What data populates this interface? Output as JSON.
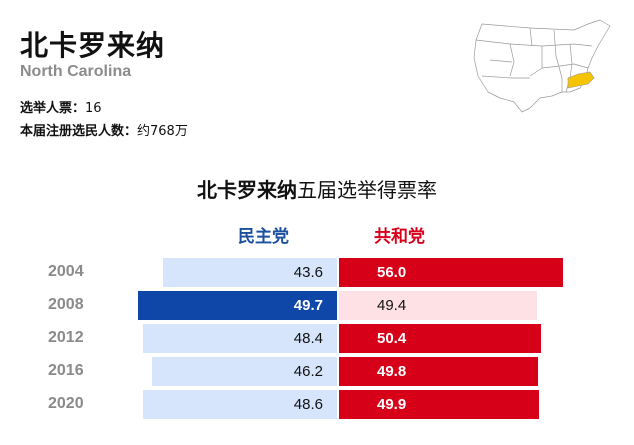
{
  "header": {
    "title": "北卡罗来纳",
    "subtitle": "North Carolina",
    "electoral_votes_label": "选举人票：",
    "electoral_votes_value": "16",
    "registered_label": "本届注册选民人数：",
    "registered_value": "约768万"
  },
  "map": {
    "highlight_color": "#f5c400",
    "icon": "us-map-icon"
  },
  "chart": {
    "title_bold": "北卡罗来纳",
    "title_rest": "五届选举得票率",
    "dem_label": "民主党",
    "rep_label": "共和党"
  },
  "colors": {
    "dem_win": "#0e47a7",
    "dem_lose": "#d6e5fb",
    "rep_win": "#d60019",
    "rep_lose": "#fde1e4"
  },
  "chart_data": {
    "type": "bar",
    "categories": [
      "2004",
      "2008",
      "2012",
      "2016",
      "2020"
    ],
    "series": [
      {
        "name": "民主党",
        "values": [
          43.6,
          49.7,
          48.4,
          46.2,
          48.6
        ]
      },
      {
        "name": "共和党",
        "values": [
          56.0,
          49.4,
          50.4,
          49.8,
          49.9
        ]
      }
    ],
    "labels": {
      "dem": [
        "43.6",
        "49.7",
        "48.4",
        "46.2",
        "48.6"
      ],
      "rep": [
        "56.0",
        "49.4",
        "50.4",
        "49.8",
        "49.9"
      ]
    }
  }
}
